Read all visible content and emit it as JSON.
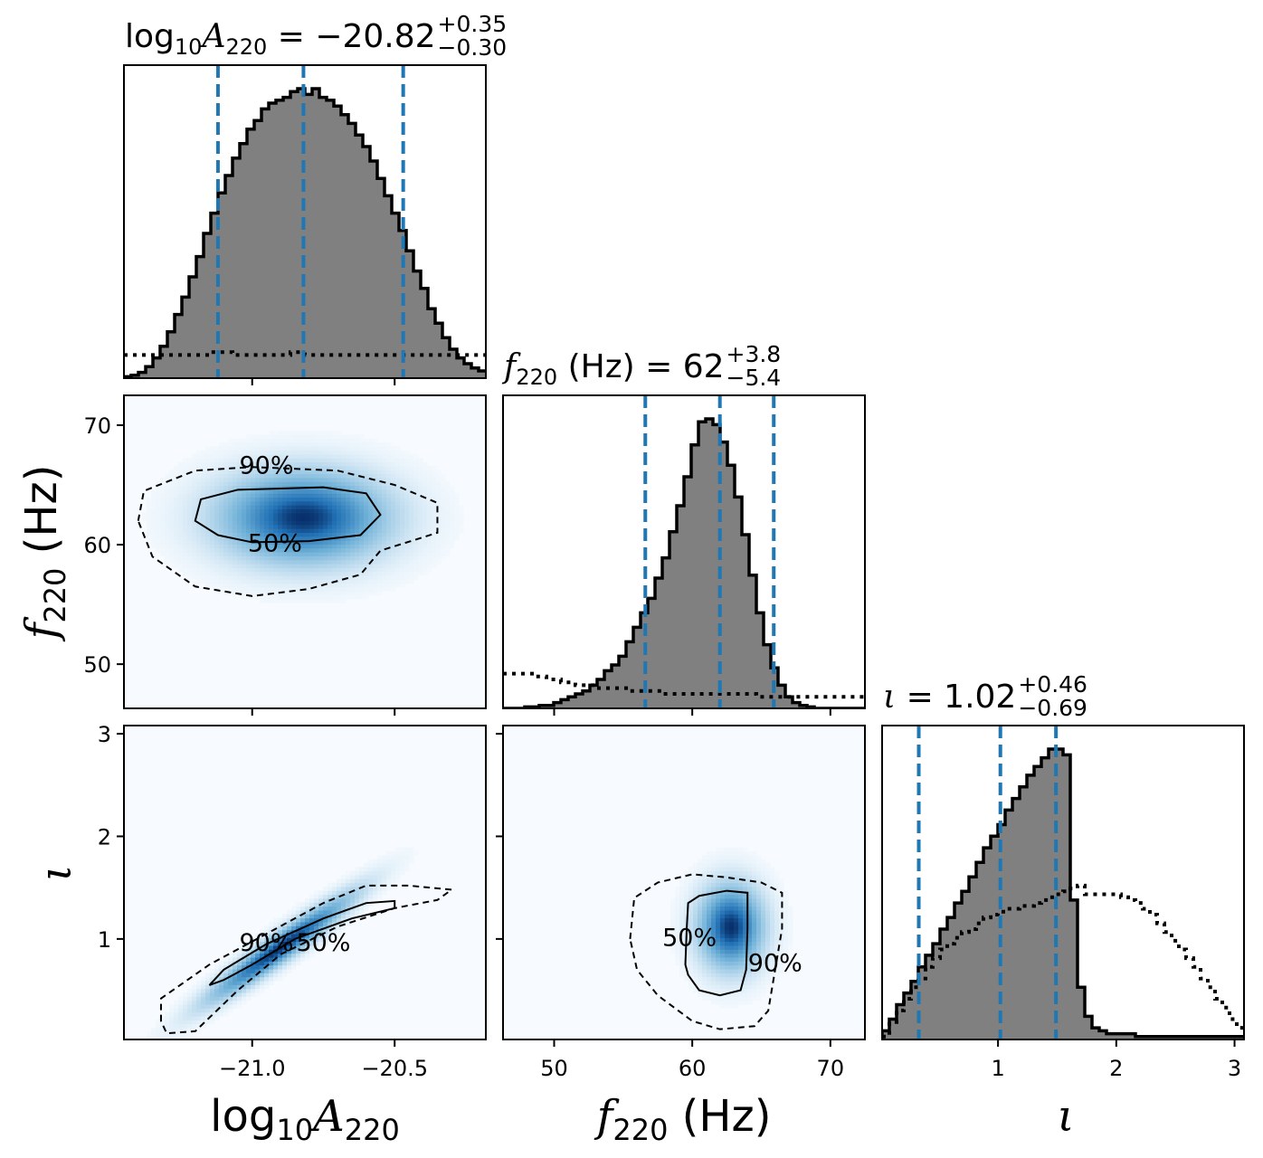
{
  "chart_data": {
    "type": "corner",
    "parameters": [
      {
        "id": "logA",
        "axis_label": "log10A220",
        "title": {
          "prefix": "log",
          "sub1": "10",
          "sym": "A",
          "sub2": "220",
          "eq": " = −20.82",
          "sup": "+0.35",
          "sub": "−0.30"
        },
        "median": -20.82,
        "err_plus": 0.35,
        "err_minus": 0.3,
        "range": [
          -21.45,
          -20.18
        ],
        "ticks": [
          -21.0,
          -20.5
        ],
        "tick_labels": [
          "−21.0",
          "−20.5"
        ],
        "quantiles": [
          -21.12,
          -20.82,
          -20.47
        ]
      },
      {
        "id": "f220",
        "axis_label": "f220 (Hz)",
        "title": {
          "sym": "f",
          "sub2": "220",
          "eq": " (Hz) = 62",
          "sup": "+3.8",
          "sub": "−5.4"
        },
        "median": 62,
        "err_plus": 3.8,
        "err_minus": 5.4,
        "range": [
          46.3,
          72.5
        ],
        "ticks": [
          50,
          60,
          70
        ],
        "tick_labels": [
          "50",
          "60",
          "70"
        ],
        "quantiles": [
          56.6,
          62.0,
          65.9
        ]
      },
      {
        "id": "iota",
        "axis_label": "ι",
        "title": {
          "sym": "ι",
          "eq": " = 1.02",
          "sup": "+0.46",
          "sub": "−0.69"
        },
        "median": 1.02,
        "err_plus": 0.46,
        "err_minus": 0.69,
        "range": [
          0.02,
          3.08
        ],
        "ticks": [
          1,
          2,
          3
        ],
        "tick_labels": [
          "1",
          "2",
          "3"
        ],
        "quantiles": [
          0.33,
          1.02,
          1.49
        ]
      }
    ],
    "histograms": {
      "logA": {
        "posterior": [
          0.005,
          0.01,
          0.02,
          0.04,
          0.07,
          0.11,
          0.16,
          0.22,
          0.28,
          0.35,
          0.42,
          0.5,
          0.57,
          0.64,
          0.7,
          0.76,
          0.81,
          0.86,
          0.89,
          0.93,
          0.95,
          0.96,
          0.97,
          0.99,
          1.0,
          0.98,
          1.0,
          0.97,
          0.96,
          0.94,
          0.91,
          0.88,
          0.84,
          0.8,
          0.75,
          0.69,
          0.63,
          0.57,
          0.51,
          0.44,
          0.37,
          0.31,
          0.24,
          0.19,
          0.14,
          0.1,
          0.07,
          0.05,
          0.035,
          0.025
        ],
        "prior": [
          0.08,
          0.08,
          0.08,
          0.08,
          0.08,
          0.08,
          0.08,
          0.08,
          0.08,
          0.08,
          0.08,
          0.08,
          0.09,
          0.09,
          0.09,
          0.08,
          0.08,
          0.08,
          0.08,
          0.08,
          0.08,
          0.08,
          0.08,
          0.09,
          0.09,
          0.08,
          0.08,
          0.08,
          0.08,
          0.08,
          0.08,
          0.08,
          0.08,
          0.08,
          0.08,
          0.08,
          0.08,
          0.08,
          0.08,
          0.08,
          0.08,
          0.08,
          0.08,
          0.08,
          0.08,
          0.08,
          0.08,
          0.08,
          0.08,
          0.08
        ]
      },
      "f220": {
        "posterior": [
          0.0,
          0.0,
          0.0,
          0.005,
          0.005,
          0.01,
          0.01,
          0.02,
          0.03,
          0.04,
          0.05,
          0.06,
          0.08,
          0.1,
          0.13,
          0.15,
          0.18,
          0.23,
          0.28,
          0.33,
          0.38,
          0.45,
          0.52,
          0.61,
          0.7,
          0.8,
          0.91,
          0.99,
          1.0,
          0.98,
          0.92,
          0.84,
          0.73,
          0.6,
          0.46,
          0.33,
          0.22,
          0.14,
          0.08,
          0.04,
          0.02,
          0.01,
          0.005,
          0.0,
          0.0,
          0.0,
          0.0,
          0.0,
          0.0,
          0.0
        ],
        "prior": [
          0.12,
          0.12,
          0.12,
          0.12,
          0.11,
          0.11,
          0.1,
          0.1,
          0.09,
          0.09,
          0.08,
          0.08,
          0.08,
          0.07,
          0.07,
          0.07,
          0.07,
          0.06,
          0.06,
          0.06,
          0.06,
          0.06,
          0.05,
          0.05,
          0.05,
          0.05,
          0.05,
          0.05,
          0.05,
          0.05,
          0.05,
          0.05,
          0.05,
          0.05,
          0.05,
          0.04,
          0.04,
          0.04,
          0.04,
          0.04,
          0.04,
          0.04,
          0.04,
          0.04,
          0.04,
          0.04,
          0.04,
          0.04,
          0.04,
          0.04
        ]
      },
      "iota": {
        "posterior": [
          0.03,
          0.07,
          0.12,
          0.16,
          0.2,
          0.25,
          0.29,
          0.33,
          0.38,
          0.42,
          0.47,
          0.51,
          0.56,
          0.61,
          0.66,
          0.7,
          0.74,
          0.79,
          0.83,
          0.87,
          0.91,
          0.94,
          0.97,
          1.0,
          1.0,
          0.98,
          0.48,
          0.18,
          0.08,
          0.04,
          0.03,
          0.02,
          0.02,
          0.02,
          0.02,
          0.01,
          0.01,
          0.01,
          0.01,
          0.01,
          0.01,
          0.01,
          0.01,
          0.01,
          0.01,
          0.01,
          0.01,
          0.01,
          0.01,
          0.01
        ],
        "prior": [
          0.01,
          0.06,
          0.1,
          0.14,
          0.18,
          0.21,
          0.25,
          0.28,
          0.31,
          0.33,
          0.35,
          0.37,
          0.38,
          0.4,
          0.42,
          0.43,
          0.44,
          0.45,
          0.45,
          0.46,
          0.46,
          0.47,
          0.48,
          0.49,
          0.5,
          0.51,
          0.52,
          0.53,
          0.5,
          0.5,
          0.5,
          0.5,
          0.5,
          0.49,
          0.48,
          0.47,
          0.45,
          0.43,
          0.4,
          0.37,
          0.34,
          0.31,
          0.28,
          0.25,
          0.21,
          0.18,
          0.14,
          0.11,
          0.07,
          0.04
        ]
      }
    },
    "density_panels": [
      {
        "x": "logA",
        "y": "f220",
        "blobs": [
          {
            "cx": -20.82,
            "cy": 62.3,
            "sx": 0.2,
            "sy": 2.6,
            "w": 1.0
          }
        ],
        "contours": [
          {
            "level": "50%",
            "style": "solid",
            "label_at": [
              -20.92,
              60.0
            ],
            "points": [
              [
                -21.2,
                62.0
              ],
              [
                -21.18,
                63.8
              ],
              [
                -21.05,
                64.6
              ],
              [
                -20.75,
                64.8
              ],
              [
                -20.6,
                64.3
              ],
              [
                -20.55,
                62.5
              ],
              [
                -20.62,
                60.8
              ],
              [
                -20.8,
                60.3
              ],
              [
                -21.0,
                60.2
              ],
              [
                -21.12,
                60.8
              ],
              [
                -21.2,
                62.0
              ]
            ]
          },
          {
            "level": "90%",
            "style": "dashed",
            "label_at": [
              -20.95,
              66.5
            ],
            "points": [
              [
                -21.4,
                62.0
              ],
              [
                -21.38,
                64.5
              ],
              [
                -21.2,
                66.2
              ],
              [
                -21.0,
                66.5
              ],
              [
                -20.7,
                66.2
              ],
              [
                -20.5,
                65.0
              ],
              [
                -20.35,
                63.5
              ],
              [
                -20.35,
                61.0
              ],
              [
                -20.55,
                59.5
              ],
              [
                -20.62,
                57.5
              ],
              [
                -20.8,
                56.3
              ],
              [
                -21.0,
                55.7
              ],
              [
                -21.2,
                56.5
              ],
              [
                -21.35,
                59.0
              ],
              [
                -21.4,
                62.0
              ]
            ]
          }
        ]
      },
      {
        "x": "logA",
        "y": "iota",
        "blobs": [
          {
            "cx": -20.9,
            "cy": 0.92,
            "sx": 0.17,
            "sy": 0.35,
            "w": 1.0,
            "rho": 0.95
          }
        ],
        "contours": [
          {
            "level": "50%",
            "style": "solid",
            "label_at": [
              -20.75,
              0.95
            ],
            "points": [
              [
                -21.15,
                0.55
              ],
              [
                -21.1,
                0.7
              ],
              [
                -20.95,
                0.95
              ],
              [
                -20.75,
                1.2
              ],
              [
                -20.6,
                1.35
              ],
              [
                -20.5,
                1.37
              ],
              [
                -20.5,
                1.3
              ],
              [
                -20.65,
                1.2
              ],
              [
                -20.85,
                1.0
              ],
              [
                -21.0,
                0.75
              ],
              [
                -21.1,
                0.6
              ],
              [
                -21.15,
                0.55
              ]
            ]
          },
          {
            "level": "90%",
            "style": "dashed",
            "label_at": [
              -20.95,
              0.95
            ],
            "points": [
              [
                -21.32,
                0.2
              ],
              [
                -21.32,
                0.42
              ],
              [
                -21.15,
                0.75
              ],
              [
                -20.95,
                1.05
              ],
              [
                -20.75,
                1.35
              ],
              [
                -20.6,
                1.52
              ],
              [
                -20.45,
                1.52
              ],
              [
                -20.3,
                1.48
              ],
              [
                -20.35,
                1.38
              ],
              [
                -20.5,
                1.3
              ],
              [
                -20.7,
                1.12
              ],
              [
                -20.9,
                0.85
              ],
              [
                -21.05,
                0.5
              ],
              [
                -21.2,
                0.1
              ],
              [
                -21.3,
                0.08
              ],
              [
                -21.32,
                0.2
              ]
            ]
          }
        ]
      },
      {
        "x": "f220",
        "y": "iota",
        "blobs": [
          {
            "cx": 62.8,
            "cy": 1.12,
            "sx": 1.6,
            "sy": 0.28,
            "w": 1.0
          }
        ],
        "contours": [
          {
            "level": "50%",
            "style": "solid",
            "label_at": [
              59.8,
              1.0
            ],
            "points": [
              [
                59.5,
                0.75
              ],
              [
                59.6,
                1.1
              ],
              [
                59.7,
                1.35
              ],
              [
                60.5,
                1.42
              ],
              [
                62.5,
                1.47
              ],
              [
                64.0,
                1.45
              ],
              [
                64.0,
                1.1
              ],
              [
                63.9,
                0.7
              ],
              [
                63.5,
                0.5
              ],
              [
                62.0,
                0.45
              ],
              [
                60.5,
                0.5
              ],
              [
                59.7,
                0.65
              ],
              [
                59.5,
                0.75
              ]
            ]
          },
          {
            "level": "90%",
            "style": "dashed",
            "label_at": [
              66.0,
              0.75
            ],
            "points": [
              [
                55.5,
                1.0
              ],
              [
                55.8,
                1.4
              ],
              [
                57.5,
                1.55
              ],
              [
                60.0,
                1.63
              ],
              [
                62.5,
                1.6
              ],
              [
                65.0,
                1.55
              ],
              [
                66.5,
                1.45
              ],
              [
                66.5,
                1.1
              ],
              [
                66.0,
                0.7
              ],
              [
                65.5,
                0.3
              ],
              [
                64.5,
                0.15
              ],
              [
                62.0,
                0.12
              ],
              [
                60.0,
                0.2
              ],
              [
                57.5,
                0.45
              ],
              [
                56.0,
                0.7
              ],
              [
                55.5,
                1.0
              ]
            ]
          }
        ]
      }
    ],
    "colors": {
      "hist_fill": "#808080",
      "hist_edge": "#000000",
      "quantile_line": "#1f77b4",
      "density_low": "#f7fbff",
      "density_high": "#08306b"
    },
    "grid": false,
    "legend": "none"
  }
}
